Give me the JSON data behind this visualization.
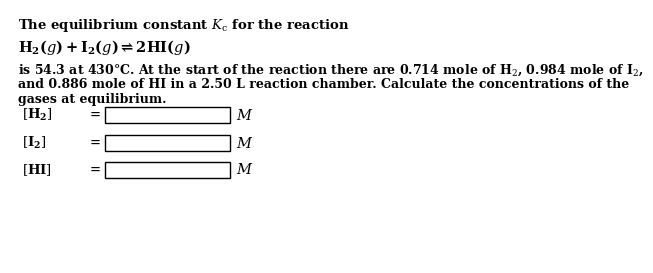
{
  "title_line": "The equilibrium constant $\\mathit{K}_{\\mathrm{c}}$ for the reaction",
  "reaction": "$\\mathbf{H_2}\\mathbf{(}\\mathit{g}\\mathbf{) + I_2(}\\mathit{g}\\mathbf{) \\rightleftharpoons 2HI(}\\mathit{g}\\mathbf{)}$",
  "body_line1": "is 54.3 at 430°C. At the start of the reaction there are 0.714 mole of H$_2$, 0.984 mole of I$_2$,",
  "body_line2": "and 0.886 mole of HI in a 2.50 L reaction chamber. Calculate the concentrations of the",
  "body_line3": "gases at equilibrium.",
  "label1": "$[\\mathbf{H_2}]$",
  "label2": "$[\\mathbf{I_2}]$",
  "label3": "$[\\mathbf{HI}]$",
  "unit": "$\\mathit{M}$",
  "bg_color": "#ffffff",
  "text_color": "#000000"
}
